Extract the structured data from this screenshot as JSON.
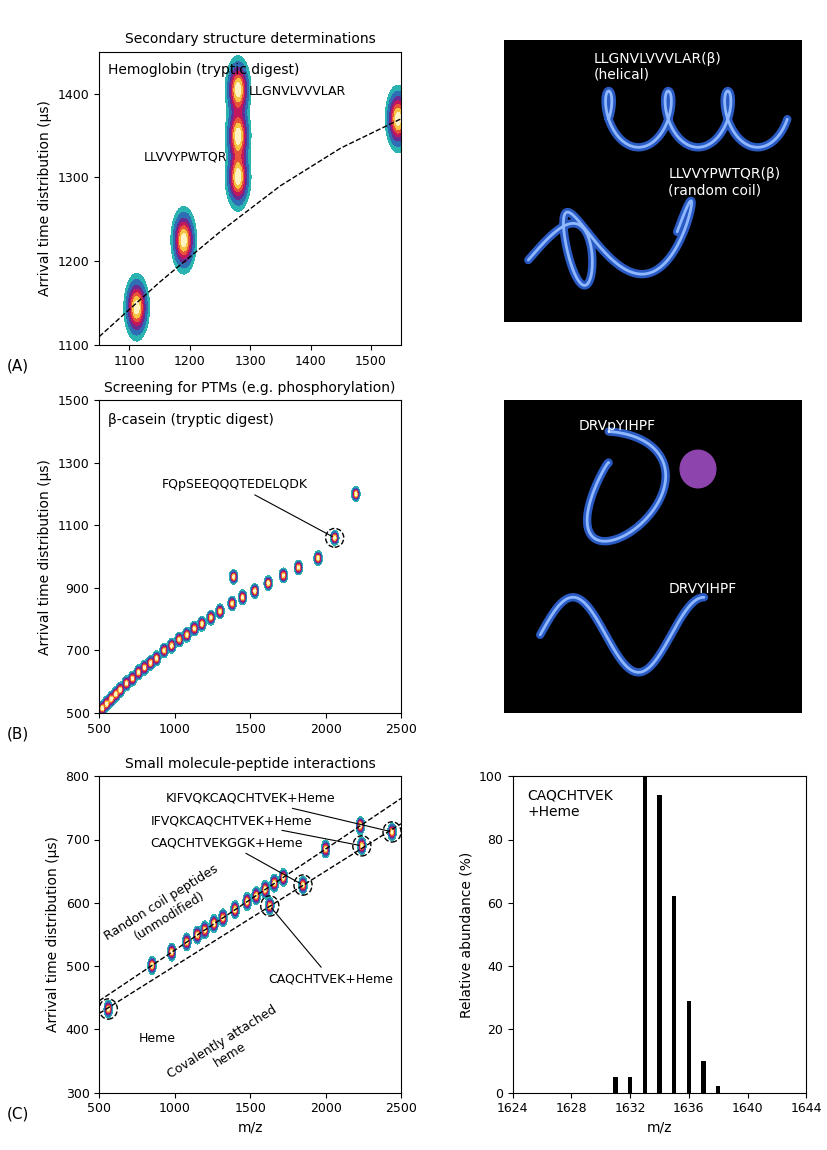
{
  "chart_data": [
    {
      "type": "contour",
      "panel_label": "(A)",
      "title": "Secondary structure determinations",
      "annotation": "Hemoglobin (tryptic digest)",
      "y_label": "Arrival time distribution (μs)",
      "xlim": [
        1050,
        1550
      ],
      "xticks": [
        1100,
        1200,
        1300,
        1400,
        1500
      ],
      "ylim": [
        1100,
        1450
      ],
      "yticks": [
        1100,
        1200,
        1300,
        1400
      ],
      "x": [
        1112,
        1190,
        1280,
        1280,
        1280,
        1545
      ],
      "y": [
        1145,
        1225,
        1300,
        1350,
        1405,
        1370
      ],
      "peak_labels": [
        {
          "text": "LLVVYPWTQR",
          "x": 1280,
          "y": 1300
        },
        {
          "text": "LLGNVLVVVLAR",
          "x": 1280,
          "y": 1405
        }
      ],
      "series": [
        {
          "line_style": "dashed",
          "x": [
            1050,
            1150,
            1250,
            1350,
            1450,
            1550
          ],
          "y": [
            1110,
            1175,
            1235,
            1290,
            1335,
            1370
          ]
        }
      ]
    },
    {
      "type": "diagram",
      "labels": [
        "LLGNVLVVVLAR(β)\n(helical)",
        "LLVVYPWTQR(β)\n(random coil)"
      ]
    },
    {
      "type": "contour",
      "panel_label": "(B)",
      "title": "Screening for PTMs (e.g. phosphorylation)",
      "annotation": "β-casein (tryptic digest)",
      "y_label": "Arrival time distribution (μs)",
      "xlim": [
        500,
        2500
      ],
      "xticks": [
        500,
        1000,
        1500,
        2000,
        2500
      ],
      "ylim": [
        500,
        1500
      ],
      "yticks": [
        500,
        700,
        900,
        1100,
        1300,
        1500
      ],
      "x": [
        520,
        550,
        580,
        610,
        640,
        680,
        720,
        760,
        800,
        840,
        880,
        930,
        980,
        1030,
        1080,
        1130,
        1180,
        1240,
        1300,
        1380,
        1390,
        1450,
        1530,
        1620,
        1720,
        1820,
        1950,
        2060,
        2200
      ],
      "y": [
        515,
        530,
        545,
        560,
        575,
        595,
        610,
        630,
        645,
        660,
        675,
        700,
        715,
        735,
        750,
        770,
        785,
        805,
        825,
        850,
        935,
        870,
        890,
        915,
        940,
        965,
        995,
        1060,
        1200
      ],
      "peak_labels": [
        {
          "text": "FQpSEEQQQTEDELQDK",
          "x": 2060,
          "y": 1060
        }
      ]
    },
    {
      "type": "diagram",
      "labels": [
        "DRVpYIHPF",
        "DRVYIHPF"
      ]
    },
    {
      "type": "contour",
      "panel_label": "(C)",
      "title": "Small molecule-peptide interactions",
      "y_label": "Arrival time distribution (μs)",
      "x_label": "m/z",
      "xlim": [
        500,
        2500
      ],
      "xticks": [
        500,
        1000,
        1500,
        2000,
        2500
      ],
      "ylim": [
        300,
        800
      ],
      "yticks": [
        300,
        400,
        500,
        600,
        700,
        800
      ],
      "x": [
        850,
        980,
        1080,
        1150,
        1200,
        1260,
        1320,
        1400,
        1480,
        1540,
        1600,
        1660,
        1720,
        2000,
        2230
      ],
      "y": [
        501,
        522,
        538,
        549,
        557,
        567,
        576,
        589,
        602,
        611,
        621,
        631,
        640,
        685,
        722
      ],
      "series": [
        {
          "name": "Randon coil peptides\n(unmodified)",
          "line_style": "dashed",
          "x": [
            500,
            2500
          ],
          "y": [
            445,
            765
          ]
        },
        {
          "name": "Covalently attached\nheme",
          "line_style": "dashed",
          "x": [
            500,
            2500
          ],
          "y": [
            425,
            725
          ]
        }
      ],
      "peak_labels": [
        {
          "text": "Heme",
          "x": 560,
          "y": 432
        },
        {
          "text": "CAQCHTVEK+Heme",
          "x": 1630,
          "y": 595
        },
        {
          "text": "CAQCHTVEKGGK+Heme",
          "x": 1850,
          "y": 628
        },
        {
          "text": "IFVQKCAQCHTVEK+Heme",
          "x": 2240,
          "y": 690
        },
        {
          "text": "KIFVQKCAQCHTVEK+Heme",
          "x": 2440,
          "y": 712
        }
      ]
    },
    {
      "type": "bar",
      "annotation": "CAQCHTVEK\n+Heme",
      "x_label": "m/z",
      "y_label": "Relative abundance (%)",
      "xlim": [
        1624,
        1644
      ],
      "xticks": [
        1624,
        1628,
        1632,
        1636,
        1640,
        1644
      ],
      "ylim": [
        0,
        100
      ],
      "yticks": [
        0,
        20,
        40,
        60,
        80,
        100
      ],
      "x": [
        1631,
        1632,
        1633,
        1634,
        1635,
        1636,
        1637,
        1638
      ],
      "values": [
        5,
        5,
        100,
        94,
        62,
        29,
        10,
        2
      ],
      "color": "#000000"
    }
  ]
}
